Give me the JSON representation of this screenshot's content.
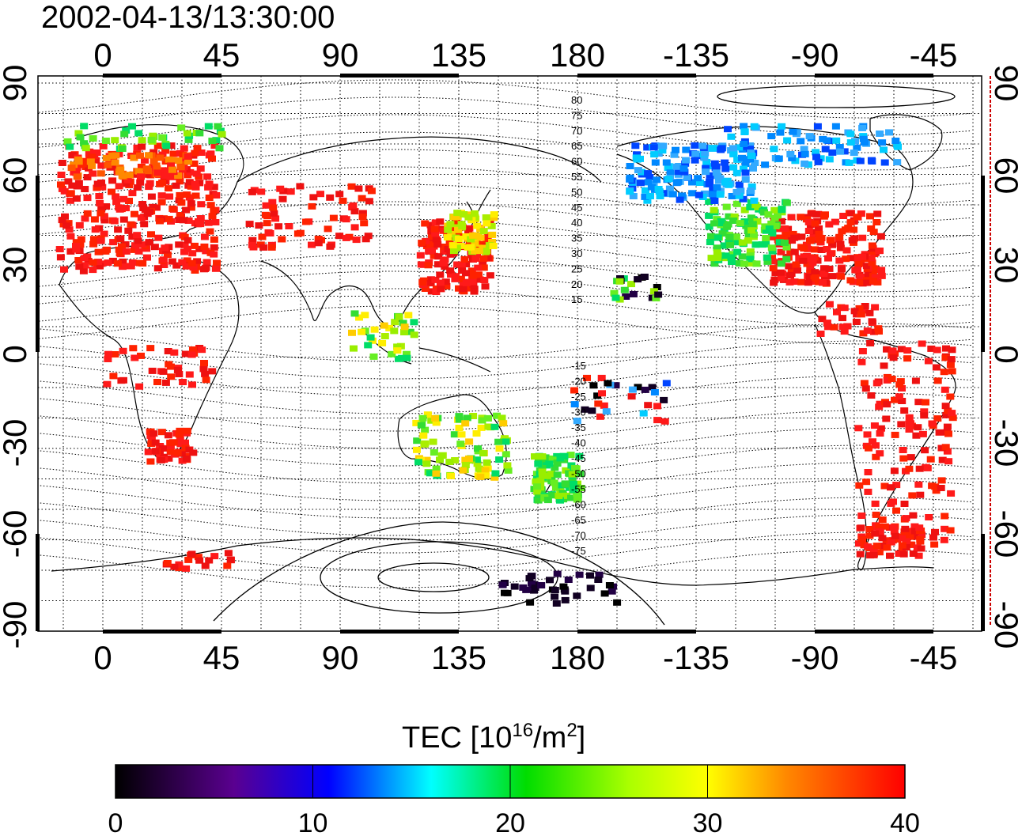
{
  "title": "2002-04-13/13:30:00",
  "top_axis_labels": [
    "0",
    "45",
    "90",
    "135",
    "180",
    "-135",
    "-90",
    "-45"
  ],
  "bottom_axis_labels": [
    "0",
    "45",
    "90",
    "135",
    "180",
    "-135",
    "-90",
    "-45"
  ],
  "left_axis_labels": [
    "90",
    "60",
    "30",
    "0",
    "-30",
    "-60",
    "-90"
  ],
  "right_axis_labels": [
    "90",
    "60",
    "30",
    "0",
    "-30",
    "-60",
    "-90"
  ],
  "magnetic_lat_labels_north": [
    "80",
    "75",
    "70",
    "65",
    "60",
    "55",
    "50",
    "45",
    "40",
    "35",
    "30",
    "25",
    "20",
    "15"
  ],
  "magnetic_lat_labels_south": [
    "-15",
    "-20",
    "-25",
    "-30",
    "-35",
    "-40",
    "-45",
    "-50",
    "-55",
    "-60",
    "-65",
    "-70",
    "-75"
  ],
  "colorbar": {
    "label_main": "TEC  [10",
    "label_sup1": "16",
    "label_mid": "/m",
    "label_sup2": "2",
    "label_end": "]",
    "ticks": [
      "0",
      "10",
      "20",
      "30",
      "40"
    ],
    "range": [
      0,
      40
    ]
  },
  "colors": {
    "high_tec": "#ff1a1a",
    "mid_tec": "#33dd33",
    "low_tec": "#0044ff",
    "terminator_line": "#cc0000"
  }
}
